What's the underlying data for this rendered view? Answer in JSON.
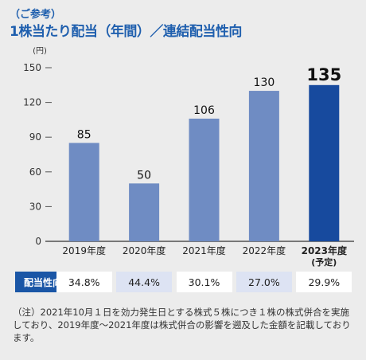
{
  "header": {
    "subtitle": "（ご参考）",
    "title": "1株当たり配当（年間）／連結配当性向"
  },
  "chart_data": {
    "type": "bar",
    "unit_label": "(円)",
    "categories": [
      "2019年度",
      "2020年度",
      "2021年度",
      "2022年度",
      "2023年度"
    ],
    "category_notes": [
      "",
      "",
      "",
      "",
      "(予定)"
    ],
    "values": [
      85,
      50,
      106,
      130,
      135
    ],
    "value_labels": [
      "85",
      "50",
      "106",
      "130",
      "135"
    ],
    "highlight_index": 4,
    "ylim": [
      0,
      150
    ],
    "yticks": [
      0,
      30,
      60,
      90,
      120,
      150
    ],
    "grid": false,
    "colors": {
      "bar": "#6f8cc3",
      "highlight": "#174a9e"
    }
  },
  "payout": {
    "label": "配当性向",
    "values": [
      "34.8%",
      "44.4%",
      "30.1%",
      "27.0%",
      "29.9%"
    ],
    "cell_colors": [
      "#ffffff",
      "#dde3f3",
      "#ffffff",
      "#dde3f3",
      "#ffffff"
    ]
  },
  "note": "（注）2021年10月１日を効力発生日とする株式５株につき１株の株式併合を実施しており、2019年度～2021年度は株式併合の影響を遡及した金額を記載しております。"
}
